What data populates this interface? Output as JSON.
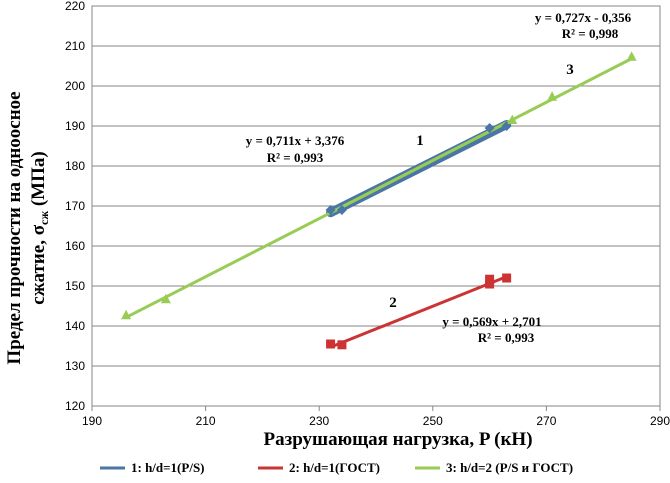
{
  "chart_data": {
    "type": "scatter",
    "xlabel": "Разрушающая нагрузка, P (кН)",
    "ylabel_main": "Предел прочности на одноосное",
    "ylabel_second_prefix": "сжатие, σ",
    "ylabel_second_sub": "сж",
    "ylabel_second_suffix": " (МПа)",
    "xlim": [
      190,
      290
    ],
    "ylim": [
      120,
      220
    ],
    "x_ticks": [
      190,
      210,
      230,
      250,
      270,
      290
    ],
    "y_ticks": [
      120,
      130,
      140,
      150,
      160,
      170,
      180,
      190,
      200,
      210,
      220
    ],
    "grid": true,
    "legend_position": "bottom",
    "series": [
      {
        "name": "1: h/d=1(P/S)",
        "number_label": "1",
        "color": "#4a76a6",
        "marker": "diamond",
        "x": [
          232,
          234,
          260,
          263
        ],
        "y": [
          169.0,
          169.0,
          189.5,
          190.0
        ],
        "trendline": {
          "x_range": [
            232,
            263
          ],
          "slope": 0.711,
          "intercept": 3.376
        },
        "equation": "y = 0,711x + 3,376",
        "r2": "R² = 0,993"
      },
      {
        "name": "2: h/d=1(ГОСТ)",
        "number_label": "2",
        "color": "#cc3333",
        "marker": "square",
        "x": [
          232,
          234,
          260,
          260,
          263
        ],
        "y": [
          135.5,
          135.3,
          150.5,
          151.7,
          152.0
        ],
        "trendline": {
          "x_range": [
            232,
            263
          ],
          "slope": 0.569,
          "intercept": 2.701
        },
        "equation": "y = 0,569x + 2,701",
        "r2": "R² = 0,993"
      },
      {
        "name": "3: h/d=2 (P/S и ГОСТ)",
        "number_label": "3",
        "color": "#99cc55",
        "marker": "triangle",
        "x": [
          196,
          203,
          264,
          271,
          285
        ],
        "y": [
          142.7,
          146.7,
          191.5,
          197.3,
          207.3
        ],
        "trendline": {
          "x_range": [
            196,
            285
          ],
          "slope": 0.727,
          "intercept": -0.356
        },
        "equation": "y = 0,727x - 0,356",
        "r2": "R² = 0,998"
      }
    ]
  }
}
